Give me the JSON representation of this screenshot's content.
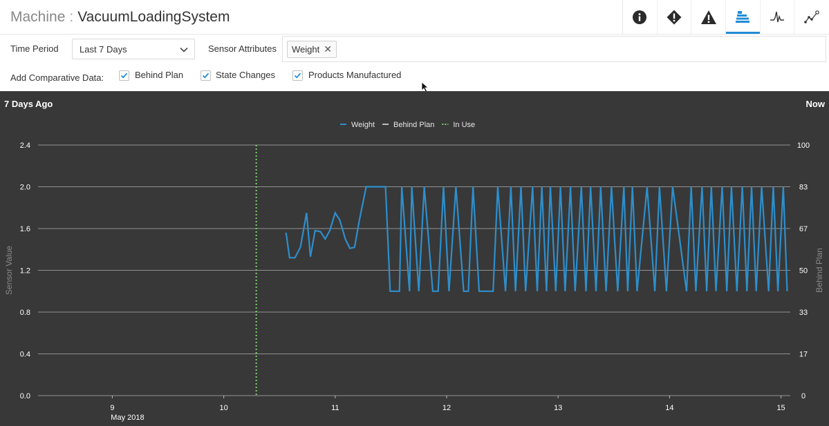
{
  "header": {
    "title_prefix": "Machine",
    "title_sep": ":",
    "title_name": "VacuumLoadingSystem",
    "icons": [
      {
        "name": "info-icon"
      },
      {
        "name": "diamond-alert-icon"
      },
      {
        "name": "warning-icon"
      },
      {
        "name": "layers-icon",
        "active": true
      },
      {
        "name": "waveform-icon"
      },
      {
        "name": "scatter-icon"
      }
    ]
  },
  "controls": {
    "time_period_label": "Time Period",
    "time_period_value": "Last 7 Days",
    "sensor_attributes_label": "Sensor Attributes",
    "sensor_attribute_chip": "Weight",
    "comparative_label": "Add Comparative Data:",
    "checkboxes": [
      {
        "label": "Behind Plan",
        "checked": true
      },
      {
        "label": "State Changes",
        "checked": true
      },
      {
        "label": "Products Manufactured",
        "checked": true
      }
    ]
  },
  "colors": {
    "accent": "#1f8dd6",
    "weight_series": "#2e8fcc",
    "behind_plan_series": "#bdbdbd",
    "in_use_series": "#7ed56f",
    "chart_bg": "#383838"
  },
  "chart_data": {
    "type": "line",
    "corner_left": "7 Days Ago",
    "corner_right": "Now",
    "ylabel_left": "Sensor Value",
    "ylabel_right": "Behind Plan",
    "ylim_left": [
      0,
      2.4
    ],
    "ylim_right": [
      0,
      100
    ],
    "yticks_left": [
      "0.0",
      "0.4",
      "0.8",
      "1.2",
      "1.6",
      "2.0",
      "2.4"
    ],
    "yticks_right": [
      "0",
      "17",
      "33",
      "50",
      "67",
      "83",
      "100"
    ],
    "xlim": [
      "2018-05-08T08:00",
      "2018-05-15T02:00"
    ],
    "x_ticks": [
      {
        "date": "2018-05-09",
        "label": "9",
        "sublabel": "May 2018"
      },
      {
        "date": "2018-05-10",
        "label": "10",
        "sublabel": ""
      },
      {
        "date": "2018-05-11",
        "label": "11",
        "sublabel": ""
      },
      {
        "date": "2018-05-12",
        "label": "12",
        "sublabel": ""
      },
      {
        "date": "2018-05-13",
        "label": "13",
        "sublabel": ""
      },
      {
        "date": "2018-05-14",
        "label": "14",
        "sublabel": ""
      },
      {
        "date": "2018-05-15",
        "label": "15",
        "sublabel": ""
      }
    ],
    "grid": true,
    "legend_position": "top-center",
    "legend": [
      {
        "name": "Weight",
        "style": "solid"
      },
      {
        "name": "Behind Plan",
        "style": "solid"
      },
      {
        "name": "In Use",
        "style": "dotted"
      }
    ],
    "in_use_marker": {
      "date": "2018-05-10T07:00"
    },
    "series": [
      {
        "name": "Weight",
        "x": [
          "2018-05-10T13:25",
          "2018-05-10T14:10",
          "2018-05-10T15:20",
          "2018-05-10T16:30",
          "2018-05-10T17:50",
          "2018-05-10T18:40",
          "2018-05-10T19:40",
          "2018-05-10T20:50",
          "2018-05-10T21:50",
          "2018-05-10T22:50",
          "2018-05-11T00:00",
          "2018-05-11T01:00",
          "2018-05-11T02:10",
          "2018-05-11T03:10",
          "2018-05-11T04:10",
          "2018-05-11T05:10",
          "2018-05-11T06:40",
          "2018-05-11T09:50",
          "2018-05-11T10:50",
          "2018-05-11T11:50",
          "2018-05-11T13:50",
          "2018-05-11T14:20",
          "2018-05-11T16:00",
          "2018-05-11T16:30",
          "2018-05-11T18:00",
          "2018-05-11T19:10",
          "2018-05-11T21:00",
          "2018-05-11T22:10",
          "2018-05-11T23:20",
          "2018-05-12T00:30",
          "2018-05-12T02:00",
          "2018-05-12T03:40",
          "2018-05-12T04:40",
          "2018-05-12T05:40",
          "2018-05-12T07:00",
          "2018-05-12T10:00",
          "2018-05-12T11:00",
          "2018-05-12T12:40",
          "2018-05-12T13:50",
          "2018-05-12T14:50",
          "2018-05-12T16:00",
          "2018-05-12T17:00",
          "2018-05-12T18:30",
          "2018-05-12T19:30",
          "2018-05-12T20:30",
          "2018-05-12T21:30",
          "2018-05-12T22:20",
          "2018-05-12T23:30",
          "2018-05-13T00:30",
          "2018-05-13T01:30",
          "2018-05-13T02:40",
          "2018-05-13T03:40",
          "2018-05-13T05:00",
          "2018-05-13T06:00",
          "2018-05-13T07:00",
          "2018-05-13T08:10",
          "2018-05-13T09:10",
          "2018-05-13T10:20",
          "2018-05-13T11:30",
          "2018-05-13T12:50",
          "2018-05-13T14:10",
          "2018-05-13T15:00",
          "2018-05-13T16:00",
          "2018-05-13T17:00",
          "2018-05-13T19:10",
          "2018-05-13T20:50",
          "2018-05-13T21:50",
          "2018-05-13T23:20",
          "2018-05-14T00:40",
          "2018-05-14T03:40",
          "2018-05-14T04:40",
          "2018-05-14T05:40",
          "2018-05-14T07:00",
          "2018-05-14T08:00",
          "2018-05-14T09:00",
          "2018-05-14T10:00",
          "2018-05-14T11:20",
          "2018-05-14T12:20",
          "2018-05-14T13:20",
          "2018-05-14T14:30",
          "2018-05-14T15:40",
          "2018-05-14T16:40",
          "2018-05-14T17:40",
          "2018-05-14T18:40",
          "2018-05-14T19:50",
          "2018-05-14T21:20",
          "2018-05-14T22:20",
          "2018-05-14T23:20",
          "2018-05-15T00:30",
          "2018-05-15T01:20"
        ],
        "y": [
          1.56,
          1.32,
          1.32,
          1.42,
          1.75,
          1.33,
          1.58,
          1.57,
          1.5,
          1.58,
          1.75,
          1.68,
          1.5,
          1.41,
          1.42,
          1.67,
          2.0,
          2.0,
          2.0,
          1.0,
          1.0,
          2.0,
          1.0,
          2.0,
          1.0,
          2.0,
          1.0,
          1.0,
          2.0,
          1.0,
          2.0,
          1.0,
          1.0,
          2.0,
          1.0,
          1.0,
          2.0,
          1.0,
          2.0,
          1.0,
          2.0,
          1.0,
          2.0,
          1.0,
          2.0,
          1.0,
          2.0,
          1.0,
          2.0,
          1.0,
          2.0,
          1.0,
          2.0,
          1.0,
          2.0,
          1.0,
          2.0,
          1.0,
          2.0,
          1.0,
          2.0,
          1.0,
          2.0,
          1.0,
          2.0,
          1.0,
          2.0,
          1.0,
          2.0,
          1.0,
          2.0,
          1.0,
          2.0,
          1.0,
          2.0,
          1.0,
          2.0,
          1.0,
          2.0,
          1.0,
          2.0,
          1.0,
          2.0,
          1.0,
          2.0,
          1.0,
          2.0,
          1.0,
          2.0,
          1.0
        ]
      }
    ]
  }
}
